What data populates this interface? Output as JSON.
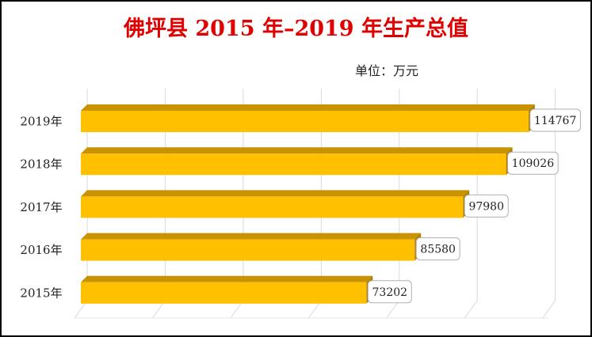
{
  "chart_data": {
    "type": "bar",
    "orientation": "horizontal",
    "title": "佛坪县 2015 年–2019 年生产总值",
    "unit_label": "单位：万元",
    "categories": [
      "2019年",
      "2018年",
      "2017年",
      "2016年",
      "2015年"
    ],
    "values": [
      114767,
      109026,
      97980,
      85580,
      73202
    ],
    "xlim": [
      0,
      120000
    ],
    "grid": true,
    "bar_color": "#ffc000",
    "bar_shade_color": "#c89200",
    "title_color": "#e00000"
  }
}
